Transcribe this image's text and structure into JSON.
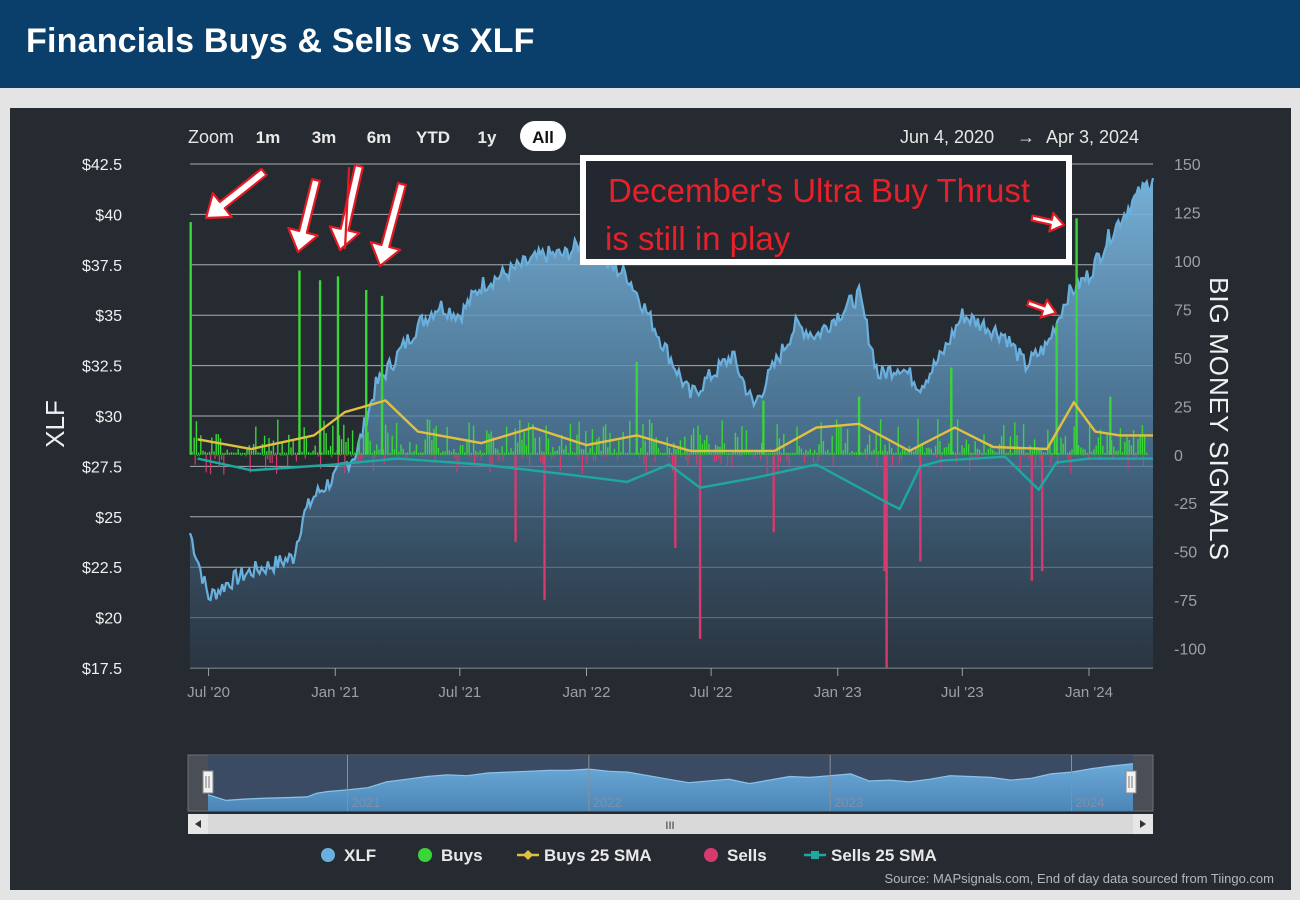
{
  "header": {
    "title": "Financials Buys & Sells vs XLF"
  },
  "toolbar": {
    "zoom_label": "Zoom",
    "buttons": [
      "1m",
      "3m",
      "6m",
      "YTD",
      "1y",
      "All"
    ],
    "active": "All",
    "range_start": "Jun 4, 2020",
    "range_arrow": "→",
    "range_end": "Apr 3, 2024"
  },
  "annotation": {
    "line1": "December's Ultra Buy Thrust",
    "line2": "is still in play",
    "color": "#e8202a"
  },
  "legend": [
    "XLF",
    "Buys",
    "Buys 25 SMA",
    "Sells",
    "Sells 25 SMA"
  ],
  "navigator": {
    "year_labels": [
      "2021",
      "2022",
      "2023",
      "2024"
    ],
    "scroll_grip": "III"
  },
  "source": "Source: MAPsignals.com, End of day data sourced from Tiingo.com",
  "colors": {
    "xlf": "#6ab0de",
    "buys": "#39d539",
    "buys_sma": "#e0c040",
    "sells": "#d63a6e",
    "sells_sma": "#1fa8a0",
    "background": "#262b31",
    "header": "#0b3f6b"
  },
  "chart_data": {
    "type": "line",
    "date_range": [
      "2020-06-04",
      "2024-04-03"
    ],
    "xaxis": {
      "tick_labels": [
        "Jul '20",
        "Jan '21",
        "Jul '21",
        "Jan '22",
        "Jul '22",
        "Jan '23",
        "Jul '23",
        "Jan '24"
      ]
    },
    "yaxis_left": {
      "label": "XLF",
      "ylim": [
        17.5,
        42.5
      ],
      "tick_labels": [
        "$42.5",
        "$40",
        "$37.5",
        "$35",
        "$32.5",
        "$30",
        "$27.5",
        "$25",
        "$22.5",
        "$20",
        "$17.5"
      ]
    },
    "yaxis_right": {
      "label": "BIG MONEY SIGNALS",
      "ylim": [
        -110,
        150
      ],
      "tick_labels": [
        "150",
        "125",
        "100",
        "75",
        "50",
        "25",
        "0",
        "-25",
        "-50",
        "-75",
        "-100"
      ]
    },
    "grid": true,
    "legend_position": "bottom",
    "series": [
      {
        "name": "XLF",
        "axis": "left",
        "type": "area",
        "x": [
          "2020-06-04",
          "2020-07-01",
          "2020-08-01",
          "2020-09-01",
          "2020-10-01",
          "2020-11-01",
          "2020-11-15",
          "2020-12-01",
          "2021-01-01",
          "2021-02-01",
          "2021-03-01",
          "2021-04-01",
          "2021-05-01",
          "2021-06-01",
          "2021-07-01",
          "2021-08-01",
          "2021-09-01",
          "2021-10-01",
          "2021-11-01",
          "2021-12-01",
          "2022-01-01",
          "2022-02-01",
          "2022-03-01",
          "2022-04-01",
          "2022-05-01",
          "2022-06-01",
          "2022-07-01",
          "2022-08-01",
          "2022-09-01",
          "2022-10-01",
          "2022-11-01",
          "2022-12-01",
          "2023-01-01",
          "2023-02-01",
          "2023-03-01",
          "2023-04-01",
          "2023-05-01",
          "2023-06-01",
          "2023-07-01",
          "2023-08-01",
          "2023-09-01",
          "2023-10-01",
          "2023-11-01",
          "2023-12-01",
          "2024-01-01",
          "2024-02-01",
          "2024-03-01",
          "2024-04-03"
        ],
        "values": [
          24.2,
          21.0,
          21.8,
          22.3,
          22.6,
          23.0,
          25.0,
          26.0,
          27.0,
          28.2,
          31.5,
          33.0,
          34.5,
          35.5,
          35.0,
          36.5,
          37.0,
          37.5,
          38.0,
          38.0,
          38.7,
          37.5,
          37.0,
          35.0,
          33.0,
          31.0,
          32.0,
          33.0,
          30.5,
          32.5,
          34.5,
          34.0,
          35.0,
          36.0,
          32.0,
          32.5,
          31.5,
          33.0,
          35.0,
          34.5,
          34.0,
          32.5,
          33.5,
          36.0,
          37.0,
          39.0,
          40.5,
          41.8
        ]
      },
      {
        "name": "Buys",
        "axis": "right",
        "type": "bar",
        "x": [
          "2020-06-05",
          "2020-11-10",
          "2020-12-10",
          "2021-01-05",
          "2021-02-15",
          "2021-03-10",
          "2022-03-15",
          "2022-09-15",
          "2023-02-01",
          "2023-06-15",
          "2023-11-15",
          "2023-12-14",
          "2024-02-01"
        ],
        "values": [
          120,
          95,
          90,
          92,
          85,
          82,
          48,
          28,
          30,
          45,
          68,
          122,
          30
        ]
      },
      {
        "name": "Sells",
        "axis": "right",
        "type": "bar",
        "x": [
          "2021-09-20",
          "2021-11-01",
          "2022-05-10",
          "2022-06-15",
          "2022-09-30",
          "2023-03-10",
          "2023-03-13",
          "2023-05-01",
          "2023-10-10",
          "2023-10-25"
        ],
        "values": [
          -45,
          -75,
          -48,
          -95,
          -40,
          -60,
          -110,
          -55,
          -65,
          -60
        ]
      },
      {
        "name": "Buys 25 SMA",
        "axis": "right",
        "type": "line",
        "x": [
          "2020-06-15",
          "2020-09-01",
          "2020-12-01",
          "2021-01-15",
          "2021-03-15",
          "2021-05-01",
          "2021-08-01",
          "2021-10-15",
          "2022-01-01",
          "2022-03-15",
          "2022-06-01",
          "2022-10-01",
          "2022-12-01",
          "2023-02-01",
          "2023-04-15",
          "2023-06-20",
          "2023-08-15",
          "2023-11-01",
          "2023-12-10",
          "2024-01-10",
          "2024-02-15",
          "2024-04-03"
        ],
        "values": [
          8,
          3,
          10,
          22,
          28,
          12,
          6,
          14,
          5,
          10,
          2,
          2,
          14,
          16,
          2,
          14,
          4,
          3,
          27,
          12,
          10,
          10
        ]
      },
      {
        "name": "Sells 25 SMA",
        "axis": "right",
        "type": "line",
        "x": [
          "2020-06-15",
          "2020-09-01",
          "2021-01-01",
          "2021-04-01",
          "2021-08-01",
          "2021-12-01",
          "2022-03-01",
          "2022-05-01",
          "2022-06-15",
          "2022-09-01",
          "2022-12-01",
          "2023-03-15",
          "2023-04-01",
          "2023-05-01",
          "2023-06-01",
          "2023-09-01",
          "2023-10-20",
          "2023-11-15",
          "2024-01-01",
          "2024-04-03"
        ],
        "values": [
          -2,
          -8,
          -5,
          -2,
          -5,
          -10,
          -14,
          -5,
          -17,
          -12,
          -5,
          -25,
          -28,
          -6,
          -3,
          -1,
          -18,
          -4,
          -2,
          -2
        ]
      }
    ]
  }
}
